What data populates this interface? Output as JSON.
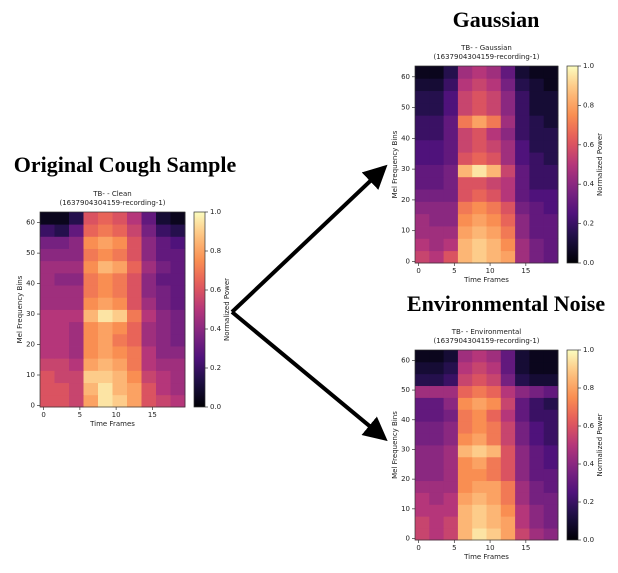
{
  "chart_data": [
    {
      "type": "heatmap",
      "heading": "Original Cough Sample",
      "title": "TB- - Clean",
      "subtitle": "(1637904304159-recording-1)",
      "xlabel": "Time Frames",
      "ylabel": "Mel Frequency Bins",
      "colorbar_label": "Normalized Power",
      "colormap": "magma",
      "xlim": [
        -0.5,
        19.5
      ],
      "ylim": [
        -0.5,
        63.5
      ],
      "xticks": [
        0,
        5,
        10,
        15
      ],
      "yticks": [
        0,
        10,
        20,
        30,
        40,
        50,
        60
      ],
      "clim": [
        0,
        1
      ],
      "cticks": [
        {
          "value": 0,
          "label": "0.0"
        },
        0.2,
        0.4,
        0.6,
        0.8,
        {
          "value": 1,
          "label": "1.0"
        }
      ],
      "x_bins": [
        -0.5,
        1.5,
        3.5,
        5.5,
        7.5,
        9.5,
        11.5,
        13.5,
        15.5,
        17.5,
        19.5
      ],
      "y_bins": [
        -0.5,
        3.5,
        7.5,
        11.5,
        15.5,
        19.5,
        23.5,
        27.5,
        31.5,
        35.5,
        39.5,
        43.5,
        47.5,
        51.5,
        55.5,
        59.5,
        63.5
      ],
      "values": [
        [
          0.6,
          0.6,
          0.55,
          0.8,
          0.95,
          0.9,
          0.8,
          0.6,
          0.55,
          0.5
        ],
        [
          0.6,
          0.6,
          0.55,
          0.85,
          0.95,
          0.85,
          0.8,
          0.6,
          0.5,
          0.45
        ],
        [
          0.6,
          0.55,
          0.55,
          0.9,
          0.9,
          0.85,
          0.75,
          0.55,
          0.5,
          0.45
        ],
        [
          0.55,
          0.55,
          0.5,
          0.8,
          0.85,
          0.8,
          0.7,
          0.5,
          0.45,
          0.45
        ],
        [
          0.5,
          0.5,
          0.45,
          0.75,
          0.8,
          0.75,
          0.7,
          0.5,
          0.4,
          0.4
        ],
        [
          0.5,
          0.5,
          0.45,
          0.75,
          0.8,
          0.7,
          0.65,
          0.45,
          0.4,
          0.35
        ],
        [
          0.5,
          0.5,
          0.45,
          0.75,
          0.8,
          0.75,
          0.65,
          0.45,
          0.4,
          0.35
        ],
        [
          0.5,
          0.5,
          0.5,
          0.85,
          0.95,
          0.9,
          0.7,
          0.5,
          0.4,
          0.35
        ],
        [
          0.45,
          0.45,
          0.45,
          0.75,
          0.8,
          0.75,
          0.6,
          0.45,
          0.35,
          0.3
        ],
        [
          0.45,
          0.45,
          0.45,
          0.7,
          0.75,
          0.7,
          0.6,
          0.4,
          0.35,
          0.3
        ],
        [
          0.45,
          0.4,
          0.4,
          0.7,
          0.75,
          0.7,
          0.6,
          0.4,
          0.3,
          0.3
        ],
        [
          0.45,
          0.45,
          0.45,
          0.75,
          0.85,
          0.8,
          0.65,
          0.45,
          0.35,
          0.3
        ],
        [
          0.4,
          0.4,
          0.4,
          0.7,
          0.75,
          0.7,
          0.6,
          0.4,
          0.3,
          0.3
        ],
        [
          0.35,
          0.35,
          0.4,
          0.75,
          0.8,
          0.75,
          0.6,
          0.4,
          0.3,
          0.25
        ],
        [
          0.2,
          0.15,
          0.3,
          0.65,
          0.7,
          0.65,
          0.55,
          0.35,
          0.2,
          0.15
        ],
        [
          0.05,
          0.05,
          0.15,
          0.6,
          0.65,
          0.6,
          0.5,
          0.3,
          0.1,
          0.05
        ]
      ]
    },
    {
      "type": "heatmap",
      "heading": "Gaussian",
      "title": "TB- - Gaussian",
      "subtitle": "(1637904304159-recording-1)",
      "xlabel": "Time Frames",
      "ylabel": "Mel Frequency Bins",
      "colorbar_label": "Normalized Power",
      "colormap": "magma",
      "xlim": [
        -0.5,
        19.5
      ],
      "ylim": [
        -0.5,
        63.5
      ],
      "xticks": [
        0,
        5,
        10,
        15
      ],
      "yticks": [
        0,
        10,
        20,
        30,
        40,
        50,
        60
      ],
      "clim": [
        0,
        1
      ],
      "cticks": [
        {
          "value": 0,
          "label": "0.0"
        },
        0.2,
        0.4,
        0.6,
        0.8,
        {
          "value": 1,
          "label": "1.0"
        }
      ],
      "x_bins": [
        -0.5,
        1.5,
        3.5,
        5.5,
        7.5,
        9.5,
        11.5,
        13.5,
        15.5,
        17.5,
        19.5
      ],
      "y_bins": [
        -0.5,
        3.5,
        7.5,
        11.5,
        15.5,
        19.5,
        23.5,
        27.5,
        31.5,
        35.5,
        39.5,
        43.5,
        47.5,
        51.5,
        55.5,
        59.5,
        63.5
      ],
      "values": [
        [
          0.55,
          0.5,
          0.6,
          0.85,
          0.9,
          0.85,
          0.8,
          0.45,
          0.35,
          0.3
        ],
        [
          0.5,
          0.45,
          0.5,
          0.85,
          0.9,
          0.85,
          0.75,
          0.45,
          0.35,
          0.3
        ],
        [
          0.45,
          0.45,
          0.45,
          0.8,
          0.85,
          0.8,
          0.7,
          0.4,
          0.3,
          0.3
        ],
        [
          0.45,
          0.4,
          0.4,
          0.75,
          0.8,
          0.75,
          0.65,
          0.4,
          0.3,
          0.3
        ],
        [
          0.4,
          0.4,
          0.4,
          0.7,
          0.75,
          0.7,
          0.6,
          0.35,
          0.3,
          0.25
        ],
        [
          0.35,
          0.35,
          0.35,
          0.6,
          0.65,
          0.6,
          0.5,
          0.3,
          0.25,
          0.25
        ],
        [
          0.3,
          0.3,
          0.35,
          0.6,
          0.6,
          0.55,
          0.5,
          0.3,
          0.2,
          0.2
        ],
        [
          0.3,
          0.3,
          0.35,
          0.85,
          0.95,
          0.85,
          0.55,
          0.3,
          0.2,
          0.2
        ],
        [
          0.25,
          0.25,
          0.3,
          0.6,
          0.65,
          0.6,
          0.45,
          0.25,
          0.2,
          0.15
        ],
        [
          0.25,
          0.25,
          0.3,
          0.55,
          0.6,
          0.55,
          0.45,
          0.25,
          0.15,
          0.15
        ],
        [
          0.2,
          0.2,
          0.3,
          0.55,
          0.6,
          0.5,
          0.4,
          0.2,
          0.15,
          0.15
        ],
        [
          0.2,
          0.2,
          0.3,
          0.7,
          0.8,
          0.7,
          0.45,
          0.2,
          0.15,
          0.1
        ],
        [
          0.15,
          0.15,
          0.25,
          0.55,
          0.6,
          0.55,
          0.4,
          0.2,
          0.1,
          0.1
        ],
        [
          0.15,
          0.15,
          0.25,
          0.55,
          0.6,
          0.55,
          0.4,
          0.2,
          0.1,
          0.1
        ],
        [
          0.1,
          0.1,
          0.2,
          0.5,
          0.55,
          0.5,
          0.35,
          0.15,
          0.1,
          0.05
        ],
        [
          0.05,
          0.05,
          0.15,
          0.45,
          0.5,
          0.45,
          0.3,
          0.1,
          0.05,
          0.05
        ]
      ]
    },
    {
      "type": "heatmap",
      "heading": "Environmental Noise",
      "title": "TB- - Environmental",
      "subtitle": "(1637904304159-recording-1)",
      "xlabel": "Time Frames",
      "ylabel": "Mel Frequency Bins",
      "colorbar_label": "Normalized Power",
      "colormap": "magma",
      "xlim": [
        -0.5,
        19.5
      ],
      "ylim": [
        -0.5,
        63.5
      ],
      "xticks": [
        0,
        5,
        10,
        15
      ],
      "yticks": [
        0,
        10,
        20,
        30,
        40,
        50,
        60
      ],
      "clim": [
        0,
        1
      ],
      "cticks": [
        {
          "value": 0,
          "label": "0.0"
        },
        0.2,
        0.4,
        0.6,
        0.8,
        {
          "value": 1,
          "label": "1.0"
        }
      ],
      "x_bins": [
        -0.5,
        1.5,
        3.5,
        5.5,
        7.5,
        9.5,
        11.5,
        13.5,
        15.5,
        17.5,
        19.5
      ],
      "y_bins": [
        -0.5,
        3.5,
        7.5,
        11.5,
        15.5,
        19.5,
        23.5,
        27.5,
        31.5,
        35.5,
        39.5,
        43.5,
        47.5,
        51.5,
        55.5,
        59.5,
        63.5
      ],
      "values": [
        [
          0.55,
          0.5,
          0.55,
          0.85,
          0.95,
          0.9,
          0.8,
          0.55,
          0.45,
          0.4
        ],
        [
          0.55,
          0.5,
          0.55,
          0.85,
          0.9,
          0.85,
          0.8,
          0.5,
          0.4,
          0.35
        ],
        [
          0.5,
          0.5,
          0.5,
          0.85,
          0.9,
          0.85,
          0.75,
          0.5,
          0.4,
          0.35
        ],
        [
          0.5,
          0.45,
          0.5,
          0.8,
          0.85,
          0.8,
          0.7,
          0.45,
          0.35,
          0.35
        ],
        [
          0.45,
          0.45,
          0.45,
          0.75,
          0.8,
          0.8,
          0.7,
          0.45,
          0.35,
          0.3
        ],
        [
          0.4,
          0.4,
          0.45,
          0.75,
          0.75,
          0.7,
          0.6,
          0.4,
          0.3,
          0.3
        ],
        [
          0.4,
          0.4,
          0.45,
          0.75,
          0.8,
          0.7,
          0.6,
          0.4,
          0.3,
          0.25
        ],
        [
          0.4,
          0.4,
          0.45,
          0.85,
          0.9,
          0.85,
          0.6,
          0.4,
          0.3,
          0.25
        ],
        [
          0.35,
          0.35,
          0.4,
          0.75,
          0.8,
          0.7,
          0.55,
          0.35,
          0.25,
          0.2
        ],
        [
          0.35,
          0.35,
          0.4,
          0.7,
          0.75,
          0.7,
          0.55,
          0.35,
          0.25,
          0.2
        ],
        [
          0.3,
          0.3,
          0.35,
          0.7,
          0.75,
          0.65,
          0.5,
          0.3,
          0.2,
          0.2
        ],
        [
          0.3,
          0.3,
          0.4,
          0.75,
          0.8,
          0.75,
          0.55,
          0.3,
          0.2,
          0.15
        ],
        [
          0.45,
          0.45,
          0.45,
          0.65,
          0.7,
          0.65,
          0.5,
          0.4,
          0.35,
          0.3
        ],
        [
          0.15,
          0.15,
          0.2,
          0.55,
          0.6,
          0.55,
          0.35,
          0.15,
          0.1,
          0.1
        ],
        [
          0.1,
          0.1,
          0.15,
          0.5,
          0.55,
          0.5,
          0.3,
          0.1,
          0.05,
          0.05
        ],
        [
          0.05,
          0.05,
          0.1,
          0.45,
          0.5,
          0.45,
          0.3,
          0.1,
          0.05,
          0.05
        ]
      ]
    }
  ]
}
